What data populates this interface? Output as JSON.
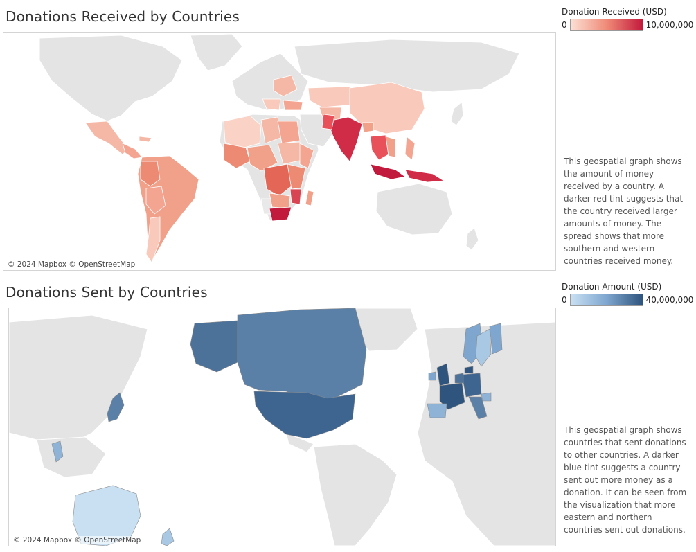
{
  "received": {
    "title": "Donations Received by Countries",
    "legend_title": "Donation Received (USD)",
    "legend_min": "0",
    "legend_max": "10,000,000",
    "legend_colors": [
      "#fbe0d4",
      "#f08a77",
      "#c21a3c"
    ],
    "attribution": "© 2024 Mapbox © OpenStreetMap",
    "description": "This geospatial graph shows the amount of money received by a country. A darker red tint suggests that the country received larger amounts of money. The spread shows that more southern and western countries received money."
  },
  "sent": {
    "title": "Donations Sent by Countries",
    "legend_title": "Donation Amount (USD)",
    "legend_min": "0",
    "legend_max": "40,000,000",
    "legend_colors": [
      "#c9e0f2",
      "#7ea6cf",
      "#2f557e"
    ],
    "attribution": "© 2024 Mapbox © OpenStreetMap",
    "description": "This geospatial graph shows countries that sent donations to other countries. A darker blue tint suggests a country sent out more money as a donation. It can be seen from the visualization that more eastern and northern countries sent out donations."
  }
}
